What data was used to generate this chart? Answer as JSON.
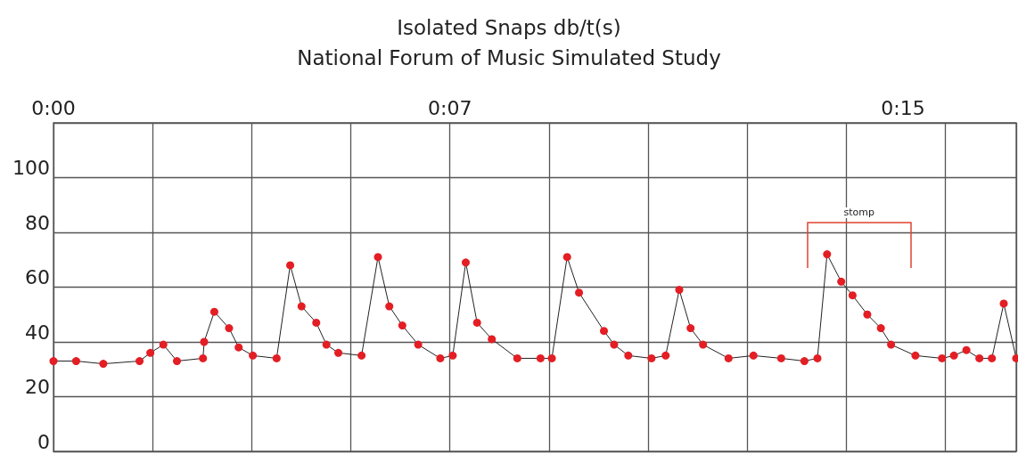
{
  "chart_data": {
    "type": "line",
    "title": "Isolated Snaps db/t(s)",
    "subtitle": "National Forum of Music Simulated Study",
    "x": [
      0,
      0.4,
      0.88,
      1.52,
      1.71,
      1.94,
      2.18,
      2.64,
      2.66,
      2.84,
      3.1,
      3.27,
      3.52,
      3.94,
      4.18,
      4.38,
      4.64,
      4.82,
      5.03,
      5.44,
      5.73,
      5.93,
      6.16,
      6.44,
      6.83,
      7.05,
      7.28,
      7.48,
      7.74,
      8.19,
      8.6,
      8.8,
      9.07,
      9.28,
      9.72,
      9.9,
      10.15,
      10.56,
      10.81,
      11.05,
      11.25,
      11.47,
      11.92,
      12.36,
      12.85,
      13.26,
      13.49,
      13.66,
      13.91,
      14.11,
      14.37,
      14.61,
      14.79,
      15.22,
      15.69,
      15.9,
      16.12,
      16.35,
      16.57,
      16.78,
      17
    ],
    "series": [
      {
        "color": "#e31e24",
        "values": [
          33,
          33,
          32,
          33,
          36,
          39,
          33,
          34,
          40,
          51,
          45,
          38,
          35,
          34,
          68,
          53,
          47,
          39,
          36,
          35,
          71,
          53,
          46,
          39,
          34,
          35,
          69,
          47,
          41,
          34,
          34,
          34,
          71,
          58,
          44,
          39,
          35,
          34,
          35,
          59,
          45,
          39,
          34,
          35,
          34,
          33,
          34,
          72,
          62,
          57,
          50,
          45,
          39,
          35,
          34,
          35,
          37,
          34,
          34,
          54,
          34
        ]
      }
    ],
    "xlim": [
      0,
      17
    ],
    "xticks": [
      {
        "value": 0,
        "label": "0:00"
      },
      {
        "value": 1.75,
        "label": null
      },
      {
        "value": 3.5,
        "label": null
      },
      {
        "value": 5.25,
        "label": null
      },
      {
        "value": 7,
        "label": "0:07"
      },
      {
        "value": 8.75,
        "label": null
      },
      {
        "value": 10.5,
        "label": null
      },
      {
        "value": 12.25,
        "label": null
      },
      {
        "value": 14,
        "label": null
      },
      {
        "value": 15,
        "label": "0:15"
      },
      {
        "value": 15.75,
        "label": null
      }
    ],
    "ylim": [
      0,
      120
    ],
    "yticks": [
      0,
      20,
      40,
      60,
      80,
      100
    ],
    "grid": true,
    "marker": "circle",
    "line_style": "solid",
    "annotations": [
      "stomp"
    ]
  }
}
